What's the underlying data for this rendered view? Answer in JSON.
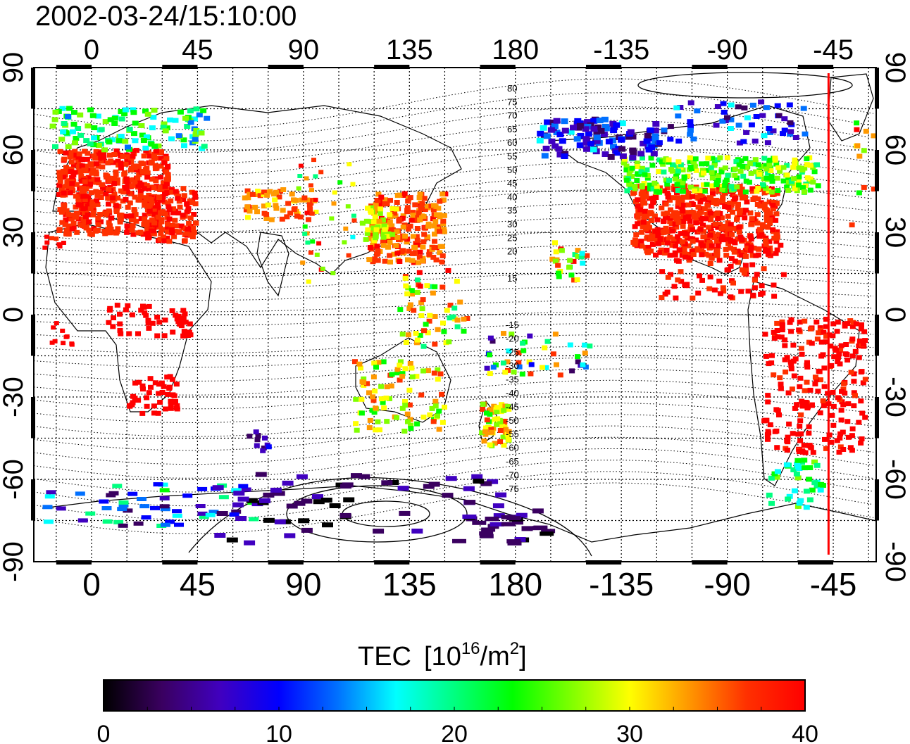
{
  "title": "2002-03-24/15:10:00",
  "map": {
    "lon_ticks_top": [
      "0",
      "45",
      "90",
      "135",
      "180",
      "-135",
      "-90",
      "-45"
    ],
    "lon_ticks_bottom": [
      "0",
      "45",
      "90",
      "135",
      "180",
      "-135",
      "-90",
      "-45"
    ],
    "lat_ticks_left": [
      "90",
      "60",
      "30",
      "0",
      "-30",
      "-60",
      "-90"
    ],
    "lat_ticks_right": [
      "90",
      "60",
      "30",
      "0",
      "-30",
      "-60",
      "-90"
    ],
    "contour_labels_north": [
      "80",
      "75",
      "70",
      "65",
      "60",
      "55",
      "50",
      "45",
      "40",
      "35",
      "30",
      "25",
      "20",
      "15"
    ],
    "contour_labels_south": [
      "-15",
      "-20",
      "-25",
      "-30",
      "-35",
      "-40",
      "-45",
      "-50",
      "-55",
      "-60",
      "-65",
      "-70",
      "-75"
    ],
    "terminator_color": "#ff0000",
    "terminator_lon": -47
  },
  "colorbar": {
    "title": "TEC",
    "unit_base": "[10",
    "unit_exp": "16",
    "unit_mid": "/m",
    "unit_exp2": "2",
    "unit_end": "]",
    "tick_labels": [
      "0",
      "10",
      "20",
      "30",
      "40"
    ],
    "min": 0,
    "max": 40,
    "stops": [
      "#000000",
      "#3a0060",
      "#4000c0",
      "#0000ff",
      "#0070ff",
      "#00ffff",
      "#00ff80",
      "#00ff00",
      "#80ff00",
      "#ffff00",
      "#ff9900",
      "#ff3000",
      "#ff0000"
    ]
  }
}
